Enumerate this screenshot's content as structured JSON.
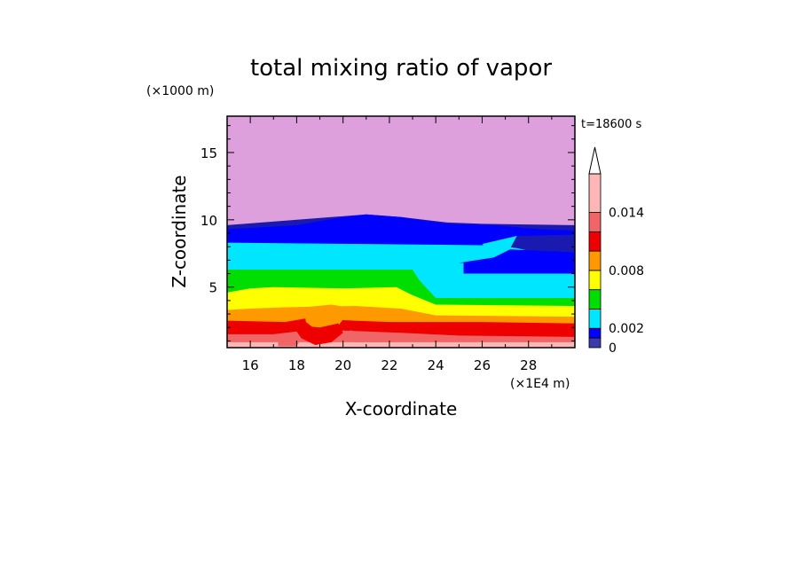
{
  "chart_data": {
    "type": "heatmap",
    "title": "total mixing ratio of vapor",
    "xlabel": "X-coordinate",
    "ylabel": "Z-coordinate",
    "x_unit": "(×1E4 m)",
    "y_unit": "(×1000 m)",
    "time_label": "t=18600 s",
    "xlim": [
      15,
      30
    ],
    "ylim": [
      0.5,
      17.7
    ],
    "x_ticks": [
      16,
      18,
      20,
      22,
      24,
      26,
      28
    ],
    "y_ticks": [
      5,
      10,
      15
    ],
    "colorbar": {
      "levels": [
        0,
        0.001,
        0.002,
        0.004,
        0.006,
        0.008,
        0.01,
        0.012,
        0.014,
        0.018
      ],
      "labels": [
        "0",
        "0.002",
        "0.008",
        "0.014"
      ],
      "label_values": [
        0,
        0.002,
        0.008,
        0.014
      ],
      "colors": [
        "#3a3aa8",
        "#0000ff",
        "#00e6ff",
        "#00dd00",
        "#ffff00",
        "#ff9900",
        "#ee0000",
        "#f06666",
        "#ffb6b6"
      ],
      "extend": "max",
      "extend_color": "#ffffff"
    },
    "fill_colors": {
      "top": "#dda0dd",
      "navy": "#1a1ab0",
      "blue": "#0000ff",
      "cyan": "#00e6ff",
      "green": "#00dd00",
      "yellow": "#ffff00",
      "orange": "#ff9900",
      "red": "#ee0000",
      "salmon": "#f06666",
      "pink": "#ffb6b6"
    },
    "layers": [
      {
        "color": "navy",
        "top": [
          [
            15,
            9.6
          ],
          [
            19.5,
            10.2
          ],
          [
            21,
            10.4
          ],
          [
            22.5,
            10.2
          ],
          [
            24.5,
            9.8
          ],
          [
            26,
            9.7
          ],
          [
            30,
            9.6
          ]
        ]
      },
      {
        "color": "blue",
        "top": [
          [
            15,
            9.3
          ],
          [
            18,
            9.6
          ],
          [
            20,
            10.2
          ],
          [
            21,
            10.4
          ],
          [
            22.5,
            10.2
          ],
          [
            24.5,
            9.7
          ],
          [
            26.5,
            9.6
          ],
          [
            28.5,
            9.3
          ],
          [
            30,
            9.2
          ]
        ]
      },
      {
        "color": "cyan",
        "top": [
          [
            15,
            8.3
          ],
          [
            21,
            8.2
          ],
          [
            26.5,
            8.1
          ],
          [
            30,
            8.0
          ]
        ]
      },
      {
        "color": "green",
        "top": [
          [
            15,
            6.3
          ],
          [
            23.0,
            6.3
          ],
          [
            23.3,
            5.5
          ],
          [
            24,
            4.2
          ],
          [
            30,
            4.2
          ]
        ]
      },
      {
        "color": "yellow",
        "top": [
          [
            15,
            4.6
          ],
          [
            16,
            4.9
          ],
          [
            17,
            5.0
          ],
          [
            20,
            4.9
          ],
          [
            22.3,
            5.0
          ],
          [
            23,
            4.4
          ],
          [
            24,
            3.7
          ],
          [
            30,
            3.6
          ]
        ]
      },
      {
        "color": "orange",
        "top": [
          [
            15,
            3.3
          ],
          [
            16,
            3.4
          ],
          [
            17.5,
            3.5
          ],
          [
            20.5,
            3.6
          ],
          [
            22.5,
            3.4
          ],
          [
            24,
            2.9
          ],
          [
            30,
            2.8
          ]
        ]
      },
      {
        "color": "red",
        "top": [
          [
            15,
            2.5
          ],
          [
            17.5,
            2.4
          ],
          [
            18.5,
            2.7
          ],
          [
            20.5,
            2.5
          ],
          [
            22,
            2.4
          ],
          [
            26,
            2.4
          ],
          [
            30,
            2.3
          ]
        ]
      },
      {
        "color": "salmon",
        "top": [
          [
            15,
            1.5
          ],
          [
            17,
            1.5
          ],
          [
            18,
            1.7
          ],
          [
            19.5,
            1.8
          ],
          [
            21,
            1.7
          ],
          [
            22.5,
            1.6
          ],
          [
            25,
            1.4
          ],
          [
            30,
            1.3
          ]
        ]
      },
      {
        "color": "pink",
        "top": [
          [
            15,
            0.9
          ],
          [
            30,
            0.9
          ]
        ]
      }
    ],
    "features": [
      {
        "color": "navy",
        "shape": [
          [
            26,
            8.2
          ],
          [
            27.5,
            8.8
          ],
          [
            30,
            8.9
          ],
          [
            30,
            7.6
          ],
          [
            28,
            7.7
          ],
          [
            27.5,
            7.9
          ]
        ]
      },
      {
        "color": "cyan",
        "shape": [
          [
            26,
            8.2
          ],
          [
            27.5,
            8.8
          ],
          [
            27.0,
            7.2
          ],
          [
            26.0,
            6.8
          ],
          [
            24.3,
            6.8
          ],
          [
            24.5,
            7.1
          ],
          [
            26.5,
            7.4
          ]
        ]
      },
      {
        "color": "blue",
        "shape": [
          [
            25.0,
            6.8
          ],
          [
            26.5,
            7.2
          ],
          [
            27.2,
            7.8
          ],
          [
            28.5,
            7.7
          ],
          [
            30,
            7.6
          ],
          [
            30,
            6.0
          ],
          [
            25.2,
            6.0
          ]
        ]
      },
      {
        "color": "cyan",
        "shape": [
          [
            23.0,
            6.3
          ],
          [
            23.3,
            5.5
          ],
          [
            24.0,
            4.2
          ],
          [
            30,
            4.2
          ],
          [
            30,
            5.8
          ],
          [
            25.2,
            5.8
          ],
          [
            25.2,
            6.8
          ],
          [
            24.3,
            6.8
          ],
          [
            23.5,
            6.5
          ]
        ]
      },
      {
        "color": "orange",
        "shape": [
          [
            18.3,
            3.5
          ],
          [
            18.4,
            2.4
          ],
          [
            19.0,
            1.6
          ],
          [
            19.7,
            1.9
          ],
          [
            20.0,
            2.6
          ],
          [
            20.5,
            3.4
          ],
          [
            19.5,
            3.7
          ]
        ]
      },
      {
        "color": "red",
        "shape": [
          [
            17.8,
            2.2
          ],
          [
            18.2,
            1.2
          ],
          [
            18.8,
            0.7
          ],
          [
            19.5,
            0.9
          ],
          [
            20.0,
            1.6
          ],
          [
            19.8,
            2.3
          ],
          [
            19.0,
            2.0
          ]
        ]
      },
      {
        "color": "salmon",
        "shape": [
          [
            20.3,
            1.8
          ],
          [
            21.0,
            1.5
          ],
          [
            22.5,
            1.4
          ],
          [
            22.2,
            0.9
          ],
          [
            20.5,
            0.9
          ]
        ]
      },
      {
        "color": "salmon",
        "shape": [
          [
            17.2,
            1.3
          ],
          [
            17.8,
            1.6
          ],
          [
            18.2,
            1.2
          ],
          [
            18.0,
            0.6
          ],
          [
            17.2,
            0.6
          ]
        ]
      }
    ]
  }
}
